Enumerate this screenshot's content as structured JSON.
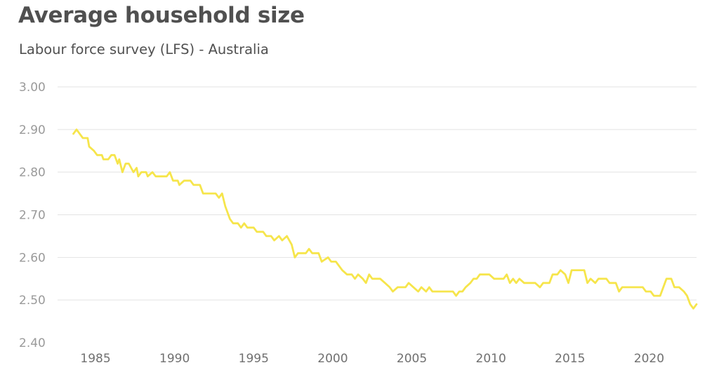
{
  "colors": {
    "series": "#f6e54b",
    "title": "#505050",
    "grid": "#e3e3e3"
  },
  "chart_data": {
    "type": "line",
    "title": "Average household size",
    "subtitle": "Labour force survey (LFS) - Australia",
    "xlabel": "",
    "ylabel": "",
    "xlim": [
      1982.6,
      2023.0
    ],
    "ylim": [
      2.4,
      3.0
    ],
    "grid": true,
    "legend": "none",
    "y_ticks": [
      {
        "value": 2.4,
        "label": "2.40"
      },
      {
        "value": 2.5,
        "label": "2.50"
      },
      {
        "value": 2.6,
        "label": "2.60"
      },
      {
        "value": 2.7,
        "label": "2.70"
      },
      {
        "value": 2.8,
        "label": "2.80"
      },
      {
        "value": 2.9,
        "label": "2.90"
      },
      {
        "value": 3.0,
        "label": "3.00"
      }
    ],
    "x_ticks": [
      {
        "value": 1985,
        "label": "1985"
      },
      {
        "value": 1990,
        "label": "1990"
      },
      {
        "value": 1995,
        "label": "1995"
      },
      {
        "value": 2000,
        "label": "2000"
      },
      {
        "value": 2005,
        "label": "2005"
      },
      {
        "value": 2010,
        "label": "2010"
      },
      {
        "value": 2015,
        "label": "2015"
      },
      {
        "value": 2020,
        "label": "2020"
      }
    ],
    "series": [
      {
        "points": [
          [
            1983.6,
            2.89
          ],
          [
            1983.8,
            2.9
          ],
          [
            1984.0,
            2.89
          ],
          [
            1984.2,
            2.88
          ],
          [
            1984.5,
            2.88
          ],
          [
            1984.6,
            2.86
          ],
          [
            1984.9,
            2.85
          ],
          [
            1985.1,
            2.84
          ],
          [
            1985.4,
            2.84
          ],
          [
            1985.5,
            2.83
          ],
          [
            1985.8,
            2.83
          ],
          [
            1986.0,
            2.84
          ],
          [
            1986.2,
            2.84
          ],
          [
            1986.4,
            2.82
          ],
          [
            1986.5,
            2.83
          ],
          [
            1986.7,
            2.8
          ],
          [
            1986.9,
            2.82
          ],
          [
            1987.1,
            2.82
          ],
          [
            1987.4,
            2.8
          ],
          [
            1987.6,
            2.81
          ],
          [
            1987.7,
            2.79
          ],
          [
            1987.9,
            2.8
          ],
          [
            1988.2,
            2.8
          ],
          [
            1988.3,
            2.79
          ],
          [
            1988.6,
            2.8
          ],
          [
            1988.8,
            2.79
          ],
          [
            1989.5,
            2.79
          ],
          [
            1989.7,
            2.8
          ],
          [
            1989.9,
            2.78
          ],
          [
            1990.2,
            2.78
          ],
          [
            1990.3,
            2.77
          ],
          [
            1990.6,
            2.78
          ],
          [
            1991.0,
            2.78
          ],
          [
            1991.2,
            2.77
          ],
          [
            1991.6,
            2.77
          ],
          [
            1991.8,
            2.75
          ],
          [
            1992.6,
            2.75
          ],
          [
            1992.8,
            2.74
          ],
          [
            1993.0,
            2.75
          ],
          [
            1993.2,
            2.72
          ],
          [
            1993.5,
            2.69
          ],
          [
            1993.7,
            2.68
          ],
          [
            1994.0,
            2.68
          ],
          [
            1994.2,
            2.67
          ],
          [
            1994.4,
            2.68
          ],
          [
            1994.6,
            2.67
          ],
          [
            1995.0,
            2.67
          ],
          [
            1995.2,
            2.66
          ],
          [
            1995.6,
            2.66
          ],
          [
            1995.8,
            2.65
          ],
          [
            1996.1,
            2.65
          ],
          [
            1996.3,
            2.64
          ],
          [
            1996.6,
            2.65
          ],
          [
            1996.8,
            2.64
          ],
          [
            1997.1,
            2.65
          ],
          [
            1997.4,
            2.63
          ],
          [
            1997.6,
            2.6
          ],
          [
            1997.8,
            2.61
          ],
          [
            1998.3,
            2.61
          ],
          [
            1998.5,
            2.62
          ],
          [
            1998.7,
            2.61
          ],
          [
            1999.1,
            2.61
          ],
          [
            1999.3,
            2.59
          ],
          [
            1999.7,
            2.6
          ],
          [
            1999.9,
            2.59
          ],
          [
            2000.2,
            2.59
          ],
          [
            2000.4,
            2.58
          ],
          [
            2000.6,
            2.57
          ],
          [
            2000.9,
            2.56
          ],
          [
            2001.2,
            2.56
          ],
          [
            2001.4,
            2.55
          ],
          [
            2001.6,
            2.56
          ],
          [
            2001.9,
            2.55
          ],
          [
            2002.1,
            2.54
          ],
          [
            2002.3,
            2.56
          ],
          [
            2002.5,
            2.55
          ],
          [
            2003.0,
            2.55
          ],
          [
            2003.3,
            2.54
          ],
          [
            2003.6,
            2.53
          ],
          [
            2003.8,
            2.52
          ],
          [
            2004.1,
            2.53
          ],
          [
            2004.6,
            2.53
          ],
          [
            2004.8,
            2.54
          ],
          [
            2005.1,
            2.53
          ],
          [
            2005.4,
            2.52
          ],
          [
            2005.6,
            2.53
          ],
          [
            2005.9,
            2.52
          ],
          [
            2006.1,
            2.53
          ],
          [
            2006.3,
            2.52
          ],
          [
            2007.0,
            2.52
          ],
          [
            2007.6,
            2.52
          ],
          [
            2007.8,
            2.51
          ],
          [
            2008.0,
            2.52
          ],
          [
            2008.2,
            2.52
          ],
          [
            2008.4,
            2.53
          ],
          [
            2008.7,
            2.54
          ],
          [
            2008.9,
            2.55
          ],
          [
            2009.1,
            2.55
          ],
          [
            2009.3,
            2.56
          ],
          [
            2009.9,
            2.56
          ],
          [
            2010.2,
            2.55
          ],
          [
            2010.8,
            2.55
          ],
          [
            2011.0,
            2.56
          ],
          [
            2011.2,
            2.54
          ],
          [
            2011.4,
            2.55
          ],
          [
            2011.6,
            2.54
          ],
          [
            2011.8,
            2.55
          ],
          [
            2012.1,
            2.54
          ],
          [
            2012.8,
            2.54
          ],
          [
            2013.1,
            2.53
          ],
          [
            2013.3,
            2.54
          ],
          [
            2013.7,
            2.54
          ],
          [
            2013.9,
            2.56
          ],
          [
            2014.2,
            2.56
          ],
          [
            2014.4,
            2.57
          ],
          [
            2014.7,
            2.56
          ],
          [
            2014.9,
            2.54
          ],
          [
            2015.1,
            2.57
          ],
          [
            2015.9,
            2.57
          ],
          [
            2016.1,
            2.54
          ],
          [
            2016.3,
            2.55
          ],
          [
            2016.6,
            2.54
          ],
          [
            2016.8,
            2.55
          ],
          [
            2017.3,
            2.55
          ],
          [
            2017.5,
            2.54
          ],
          [
            2017.9,
            2.54
          ],
          [
            2018.1,
            2.52
          ],
          [
            2018.3,
            2.53
          ],
          [
            2019.6,
            2.53
          ],
          [
            2019.8,
            2.52
          ],
          [
            2020.1,
            2.52
          ],
          [
            2020.3,
            2.51
          ],
          [
            2020.7,
            2.51
          ],
          [
            2020.9,
            2.53
          ],
          [
            2021.1,
            2.55
          ],
          [
            2021.4,
            2.55
          ],
          [
            2021.6,
            2.53
          ],
          [
            2021.9,
            2.53
          ],
          [
            2022.2,
            2.52
          ],
          [
            2022.4,
            2.51
          ],
          [
            2022.6,
            2.49
          ],
          [
            2022.8,
            2.48
          ],
          [
            2023.0,
            2.49
          ]
        ]
      }
    ]
  }
}
